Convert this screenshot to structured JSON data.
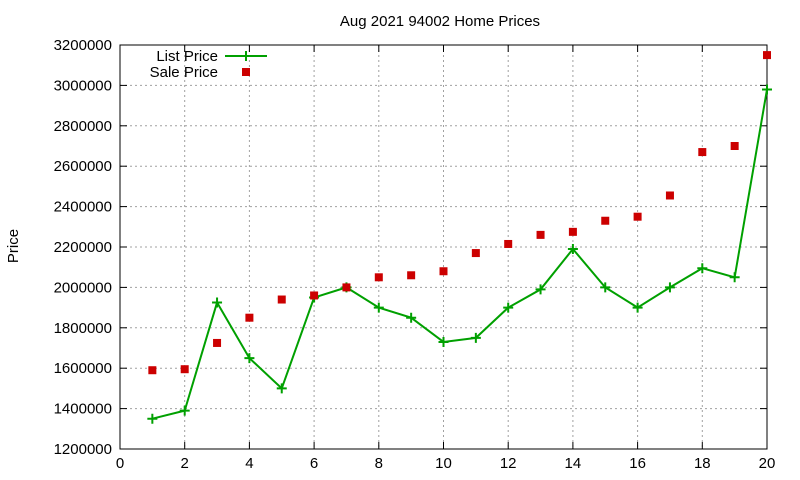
{
  "chart_data": {
    "type": "line",
    "title": "Aug 2021 94002 Home Prices",
    "xlabel": "",
    "ylabel": "Price",
    "xlim": [
      0,
      20
    ],
    "ylim": [
      1200000,
      3200000
    ],
    "x_ticks": [
      0,
      2,
      4,
      6,
      8,
      10,
      12,
      14,
      16,
      18,
      20
    ],
    "y_ticks": [
      1200000,
      1400000,
      1600000,
      1800000,
      2000000,
      2200000,
      2400000,
      2600000,
      2800000,
      3000000,
      3200000
    ],
    "grid": true,
    "legend_position": "top-left",
    "series": [
      {
        "name": "List Price",
        "style": "line-with-plus-markers",
        "color": "#00a000",
        "x": [
          1,
          2,
          3,
          4,
          5,
          6,
          7,
          8,
          9,
          10,
          11,
          12,
          13,
          14,
          15,
          16,
          17,
          18,
          19,
          20
        ],
        "values": [
          1350000,
          1390000,
          1925000,
          1650000,
          1500000,
          1950000,
          2000000,
          1900000,
          1850000,
          1730000,
          1750000,
          1900000,
          1990000,
          2190000,
          2000000,
          1900000,
          2000000,
          2095000,
          2050000,
          2980000
        ]
      },
      {
        "name": "Sale Price",
        "style": "square-markers",
        "color": "#cc0000",
        "x": [
          1,
          2,
          3,
          4,
          5,
          6,
          7,
          8,
          9,
          10,
          11,
          12,
          13,
          14,
          15,
          16,
          17,
          18,
          19,
          20
        ],
        "values": [
          1590000,
          1595000,
          1725000,
          1850000,
          1940000,
          1960000,
          2000000,
          2050000,
          2060000,
          2080000,
          2170000,
          2215000,
          2260000,
          2275000,
          2330000,
          2350000,
          2455000,
          2670000,
          2700000,
          3150000
        ]
      }
    ]
  }
}
